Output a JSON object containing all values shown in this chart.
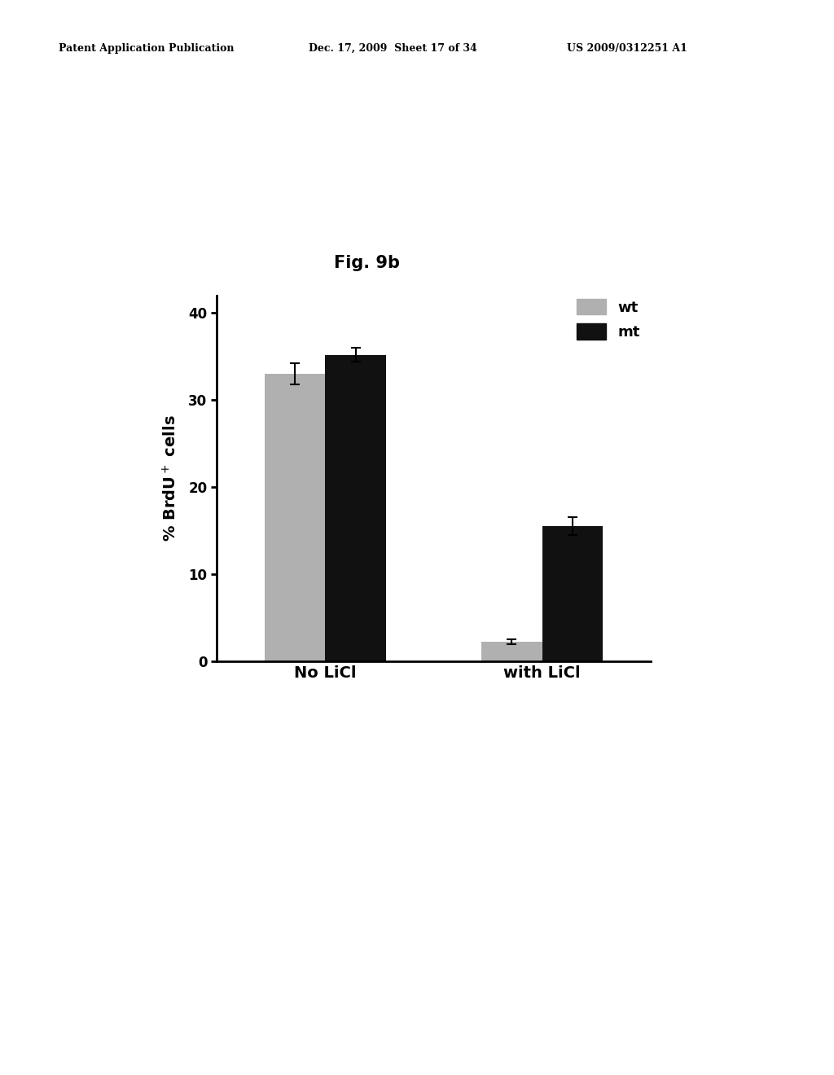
{
  "fig_label": "Fig. 9b",
  "categories": [
    "No LiCl",
    "with LiCl"
  ],
  "wt_values": [
    33.0,
    2.2
  ],
  "mt_values": [
    35.2,
    15.5
  ],
  "wt_errors": [
    1.2,
    0.3
  ],
  "mt_errors": [
    0.8,
    1.0
  ],
  "wt_color": "#b0b0b0",
  "mt_color": "#111111",
  "ylim": [
    0,
    42
  ],
  "yticks": [
    0,
    10,
    20,
    30,
    40
  ],
  "bar_width": 0.28,
  "background_color": "#ffffff",
  "fig_label_fontsize": 15,
  "axis_fontsize": 13,
  "tick_fontsize": 12,
  "legend_fontsize": 13,
  "header_left": "Patent Application Publication",
  "header_mid": "Dec. 17, 2009  Sheet 17 of 34",
  "header_right": "US 2009/0312251 A1"
}
